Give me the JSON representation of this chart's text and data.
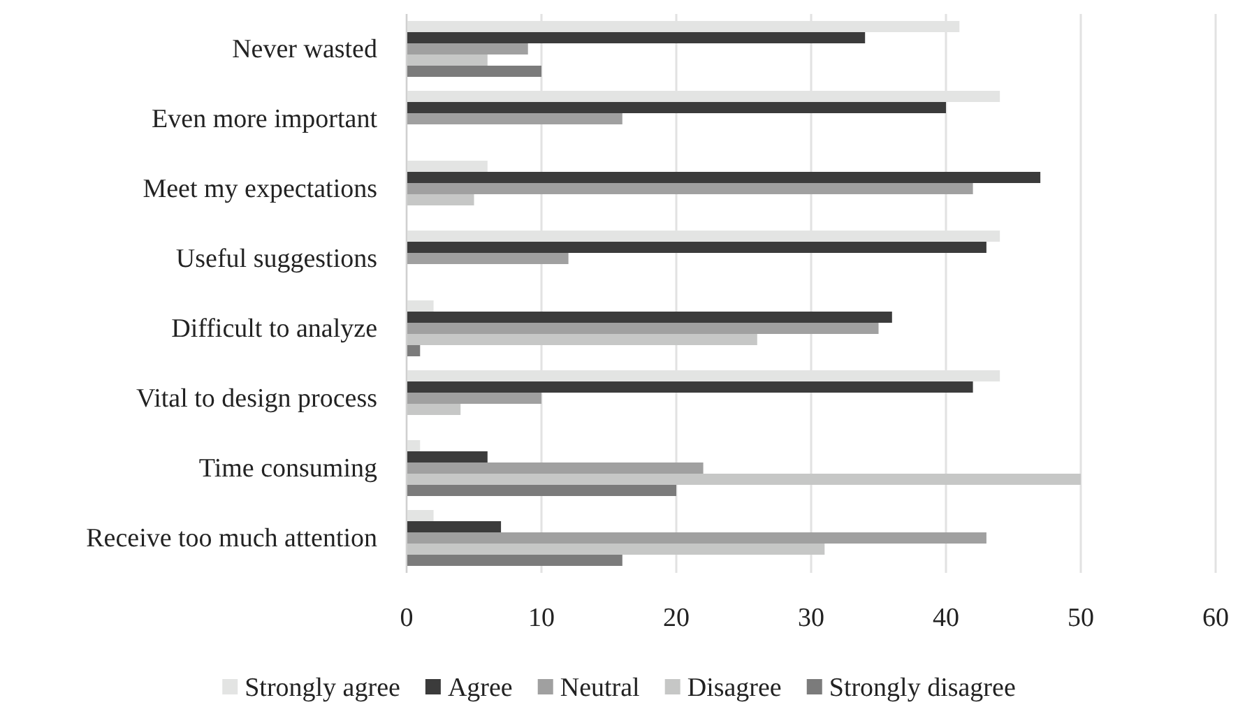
{
  "chart_data": {
    "type": "bar",
    "orientation": "horizontal",
    "categories": [
      "Never wasted",
      "Even more important",
      "Meet my expectations",
      "Useful suggestions",
      "Difficult to analyze",
      "Vital to design process",
      "Time consuming",
      "Receive too much attention"
    ],
    "series": [
      {
        "name": "Strongly agree",
        "color": "#e3e4e3",
        "values": [
          41,
          44,
          6,
          44,
          2,
          44,
          1,
          2
        ]
      },
      {
        "name": "Agree",
        "color": "#3b3b3b",
        "values": [
          34,
          40,
          47,
          43,
          36,
          42,
          6,
          7
        ]
      },
      {
        "name": "Neutral",
        "color": "#a0a0a0",
        "values": [
          9,
          16,
          42,
          12,
          35,
          10,
          22,
          43
        ]
      },
      {
        "name": "Disagree",
        "color": "#c6c7c6",
        "values": [
          6,
          0,
          5,
          0,
          26,
          4,
          50,
          31
        ]
      },
      {
        "name": "Strongly disagree",
        "color": "#7b7b7b",
        "values": [
          10,
          0,
          0,
          0,
          1,
          0,
          20,
          16
        ]
      }
    ],
    "xlim": [
      0,
      60
    ],
    "xticks": [
      0,
      10,
      20,
      30,
      40,
      50,
      60
    ],
    "grid": "x",
    "legend": "bottom"
  }
}
